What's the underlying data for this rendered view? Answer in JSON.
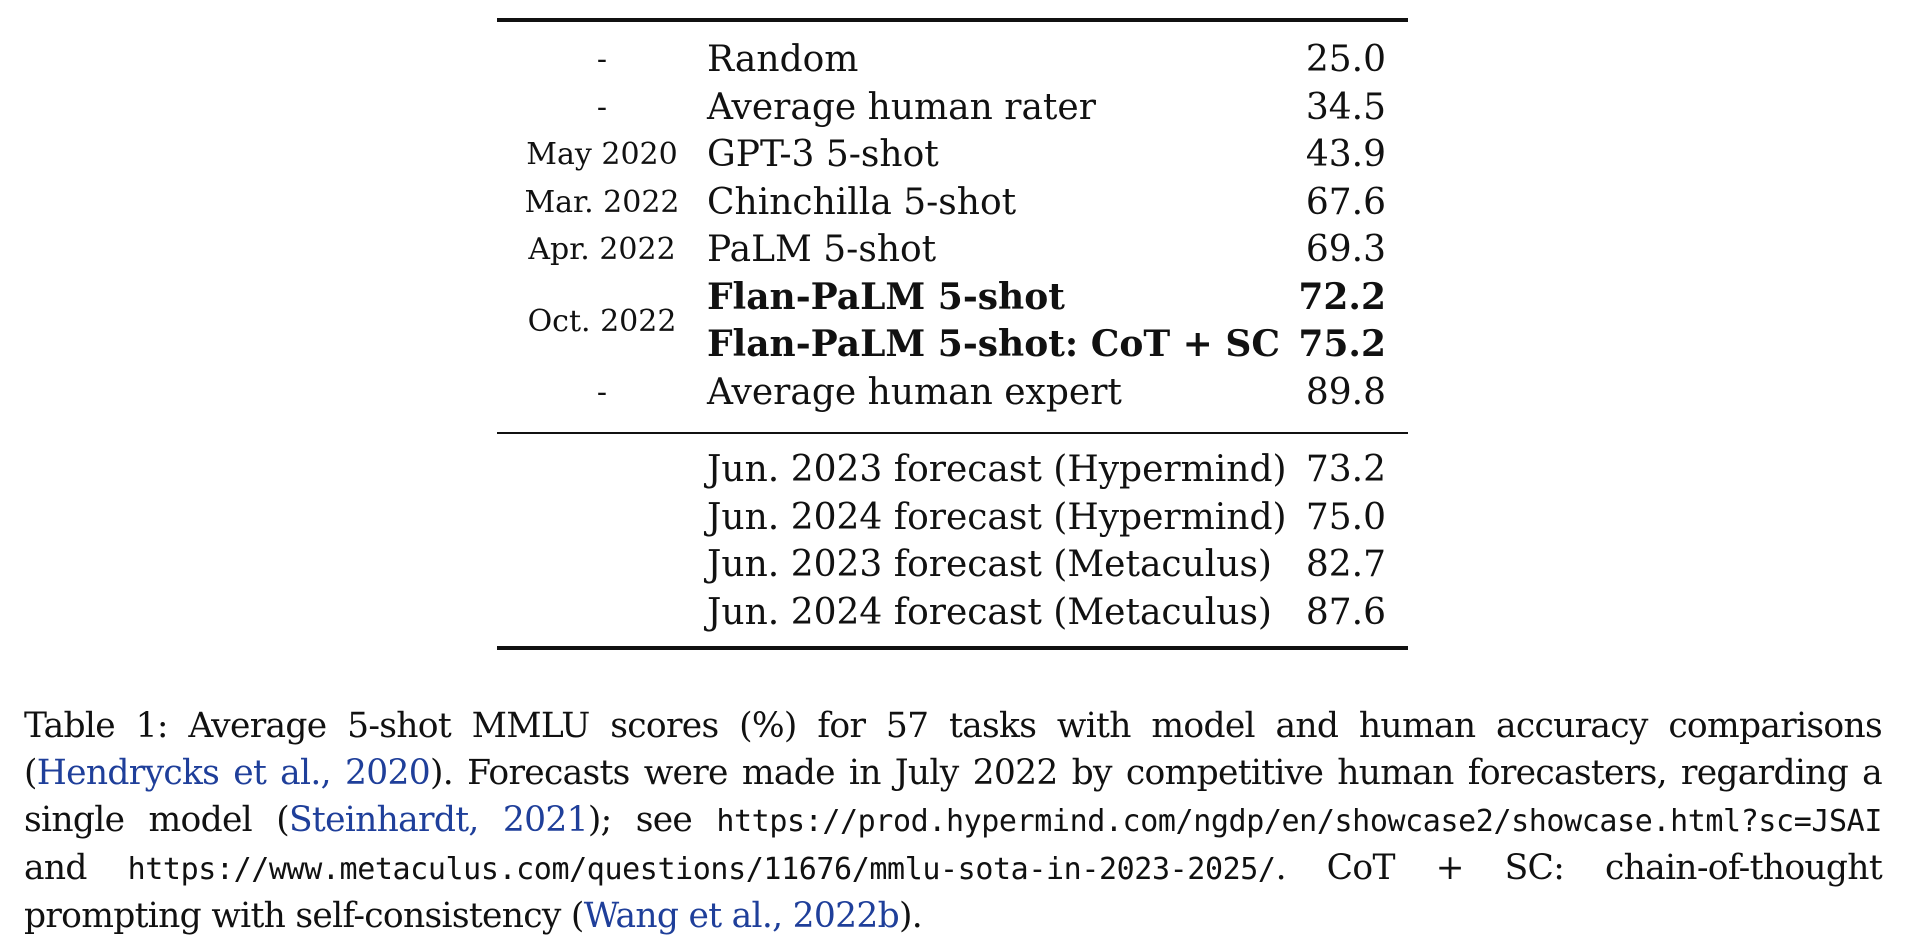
{
  "table": {
    "rows_top": [
      {
        "date": "-",
        "model": "Random",
        "score": "25.0",
        "bold": false
      },
      {
        "date": "-",
        "model": "Average human rater",
        "score": "34.5",
        "bold": false
      },
      {
        "date": "May 2020",
        "model": "GPT-3 5-shot",
        "score": "43.9",
        "bold": false
      },
      {
        "date": "Mar. 2022",
        "model": "Chinchilla 5-shot",
        "score": "67.6",
        "bold": false
      },
      {
        "date": "Apr. 2022",
        "model": "PaLM 5-shot",
        "score": "69.3",
        "bold": false
      },
      {
        "date": "Oct. 2022",
        "model": "Flan-PaLM 5-shot",
        "score": "72.2",
        "bold": true
      },
      {
        "date": "",
        "model": "Flan-PaLM 5-shot: CoT + SC",
        "score": "75.2",
        "bold": true
      },
      {
        "date": "-",
        "model": "Average human expert",
        "score": "89.8",
        "bold": false
      }
    ],
    "rows_bottom": [
      {
        "model": "Jun. 2023 forecast (Hypermind)",
        "score": "73.2"
      },
      {
        "model": "Jun. 2024 forecast (Hypermind)",
        "score": "75.0"
      },
      {
        "model": "Jun. 2023 forecast (Metaculus)",
        "score": "82.7"
      },
      {
        "model": "Jun. 2024 forecast (Metaculus)",
        "score": "87.6"
      }
    ]
  },
  "caption": {
    "part1": "Table 1:  Average 5-shot MMLU scores (%) for 57 tasks with model and human accuracy comparisons (",
    "cite1": "Hendrycks et al., 2020",
    "part2": "). Forecasts were made in July 2022 by competitive human forecasters, regarding a single model (",
    "cite2": "Steinhardt, 2021",
    "part3": "); see ",
    "url1": "https://prod.hypermind.com/ngdp/en/showcase2/showcase.html?sc=JSAI",
    "part4": " and ",
    "url2": "https://www.metaculus.com/questions/11676/mmlu-sota-in-2023-2025/",
    "part5": ". CoT + SC: chain-of-thought prompting with self-consistency (",
    "cite3": "Wang et al., 2022b",
    "part6": ")."
  }
}
